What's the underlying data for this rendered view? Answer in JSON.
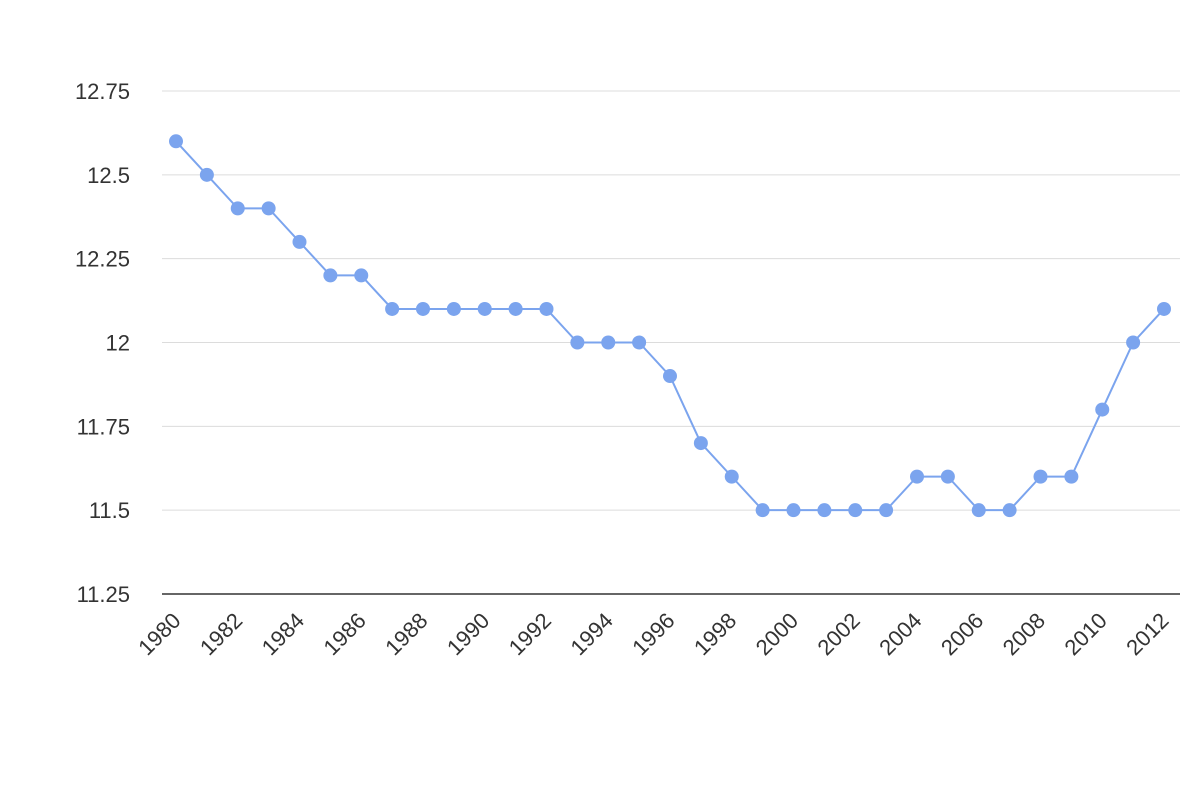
{
  "chart_data": {
    "type": "line",
    "title": "",
    "xlabel": "",
    "ylabel": "",
    "x": [
      1980,
      1981,
      1982,
      1983,
      1984,
      1985,
      1986,
      1987,
      1988,
      1989,
      1990,
      1991,
      1992,
      1993,
      1994,
      1995,
      1996,
      1997,
      1998,
      1999,
      2000,
      2001,
      2002,
      2003,
      2004,
      2005,
      2006,
      2007,
      2008,
      2009,
      2010,
      2011,
      2012
    ],
    "series": [
      {
        "values": [
          12.6,
          12.5,
          12.4,
          12.4,
          12.3,
          12.2,
          12.2,
          12.1,
          12.1,
          12.1,
          12.1,
          12.1,
          12.1,
          12.0,
          12.0,
          12.0,
          11.9,
          11.7,
          11.6,
          11.5,
          11.5,
          11.5,
          11.5,
          11.5,
          11.6,
          11.6,
          11.5,
          11.5,
          11.6,
          11.6,
          11.8,
          12.0,
          12.1
        ],
        "color": "#7ba4ee"
      }
    ],
    "ylim": [
      11.25,
      12.75
    ],
    "xlim": [
      1980,
      2012
    ],
    "y_ticks": [
      "11.25",
      "11.5",
      "11.75",
      "12",
      "12.25",
      "12.5",
      "12.75"
    ],
    "x_ticks": [
      "1980",
      "1982",
      "1984",
      "1986",
      "1988",
      "1990",
      "1992",
      "1994",
      "1996",
      "1998",
      "2000",
      "2002",
      "2004",
      "2006",
      "2008",
      "2010",
      "2012"
    ],
    "grid": true,
    "legend": "none",
    "colors": {
      "line": "#7ba4ee",
      "grid": "#dcdcdc",
      "axis": "#333333",
      "text": "#333333"
    }
  }
}
